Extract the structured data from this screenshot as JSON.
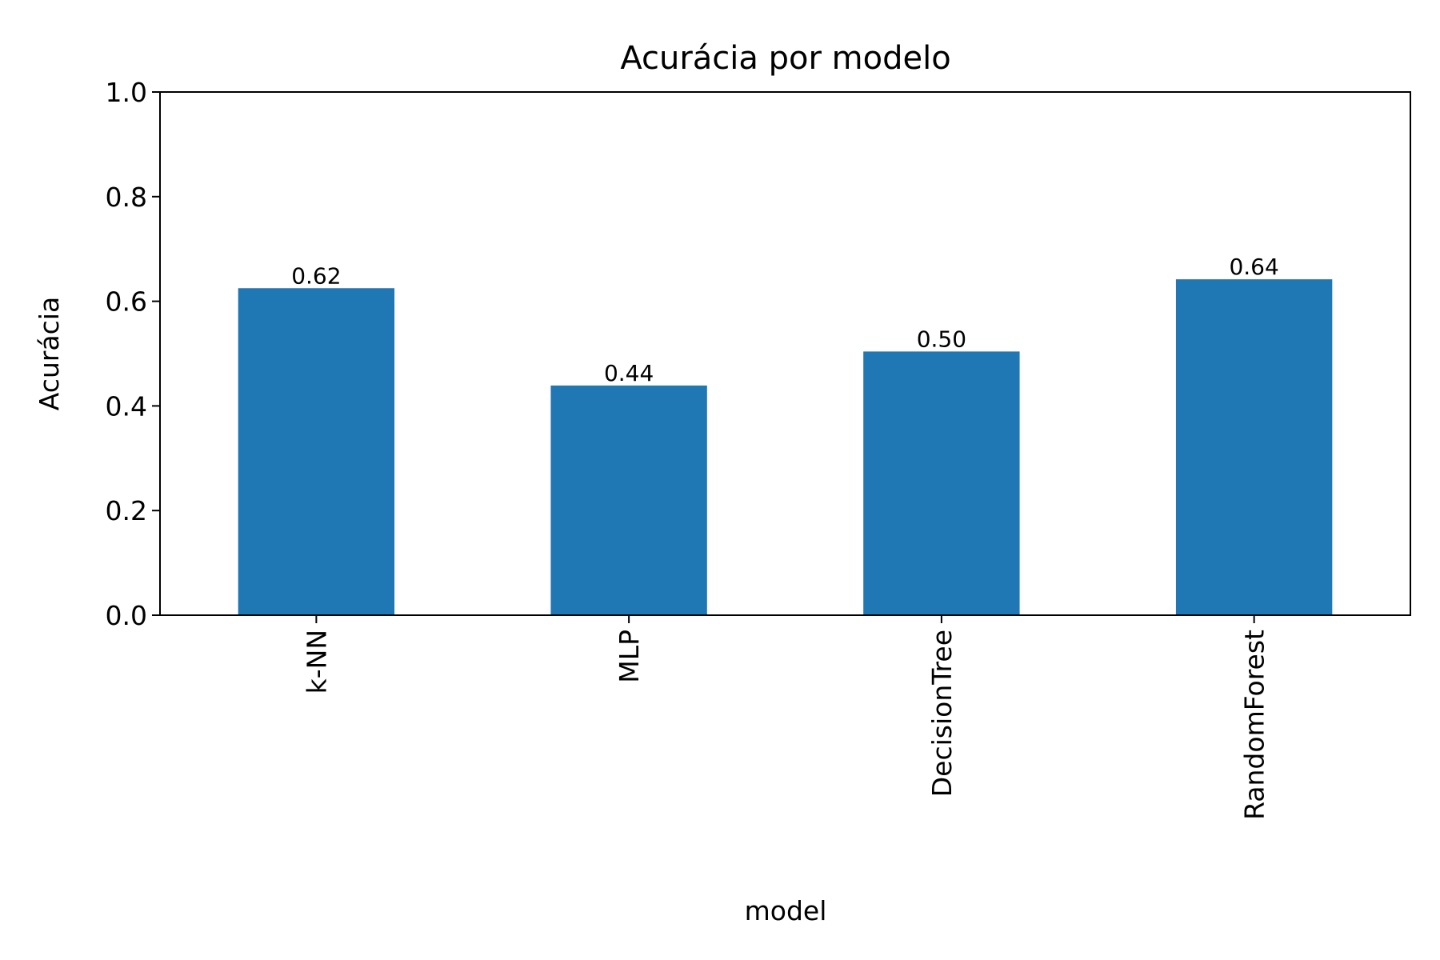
{
  "chart_data": {
    "type": "bar",
    "title": "Acurácia por modelo",
    "xlabel": "model",
    "ylabel": "Acurácia",
    "categories": [
      "k-NN",
      "MLP",
      "DecisionTree",
      "RandomForest"
    ],
    "values": [
      0.625,
      0.439,
      0.504,
      0.642
    ],
    "value_labels": [
      "0.62",
      "0.44",
      "0.50",
      "0.64"
    ],
    "ylim": [
      0,
      1.0
    ],
    "yticks": [
      "0.0",
      "0.2",
      "0.4",
      "0.6",
      "0.8",
      "1.0"
    ],
    "bar_color": "#1f77b4",
    "grid": false,
    "legend": "none"
  }
}
